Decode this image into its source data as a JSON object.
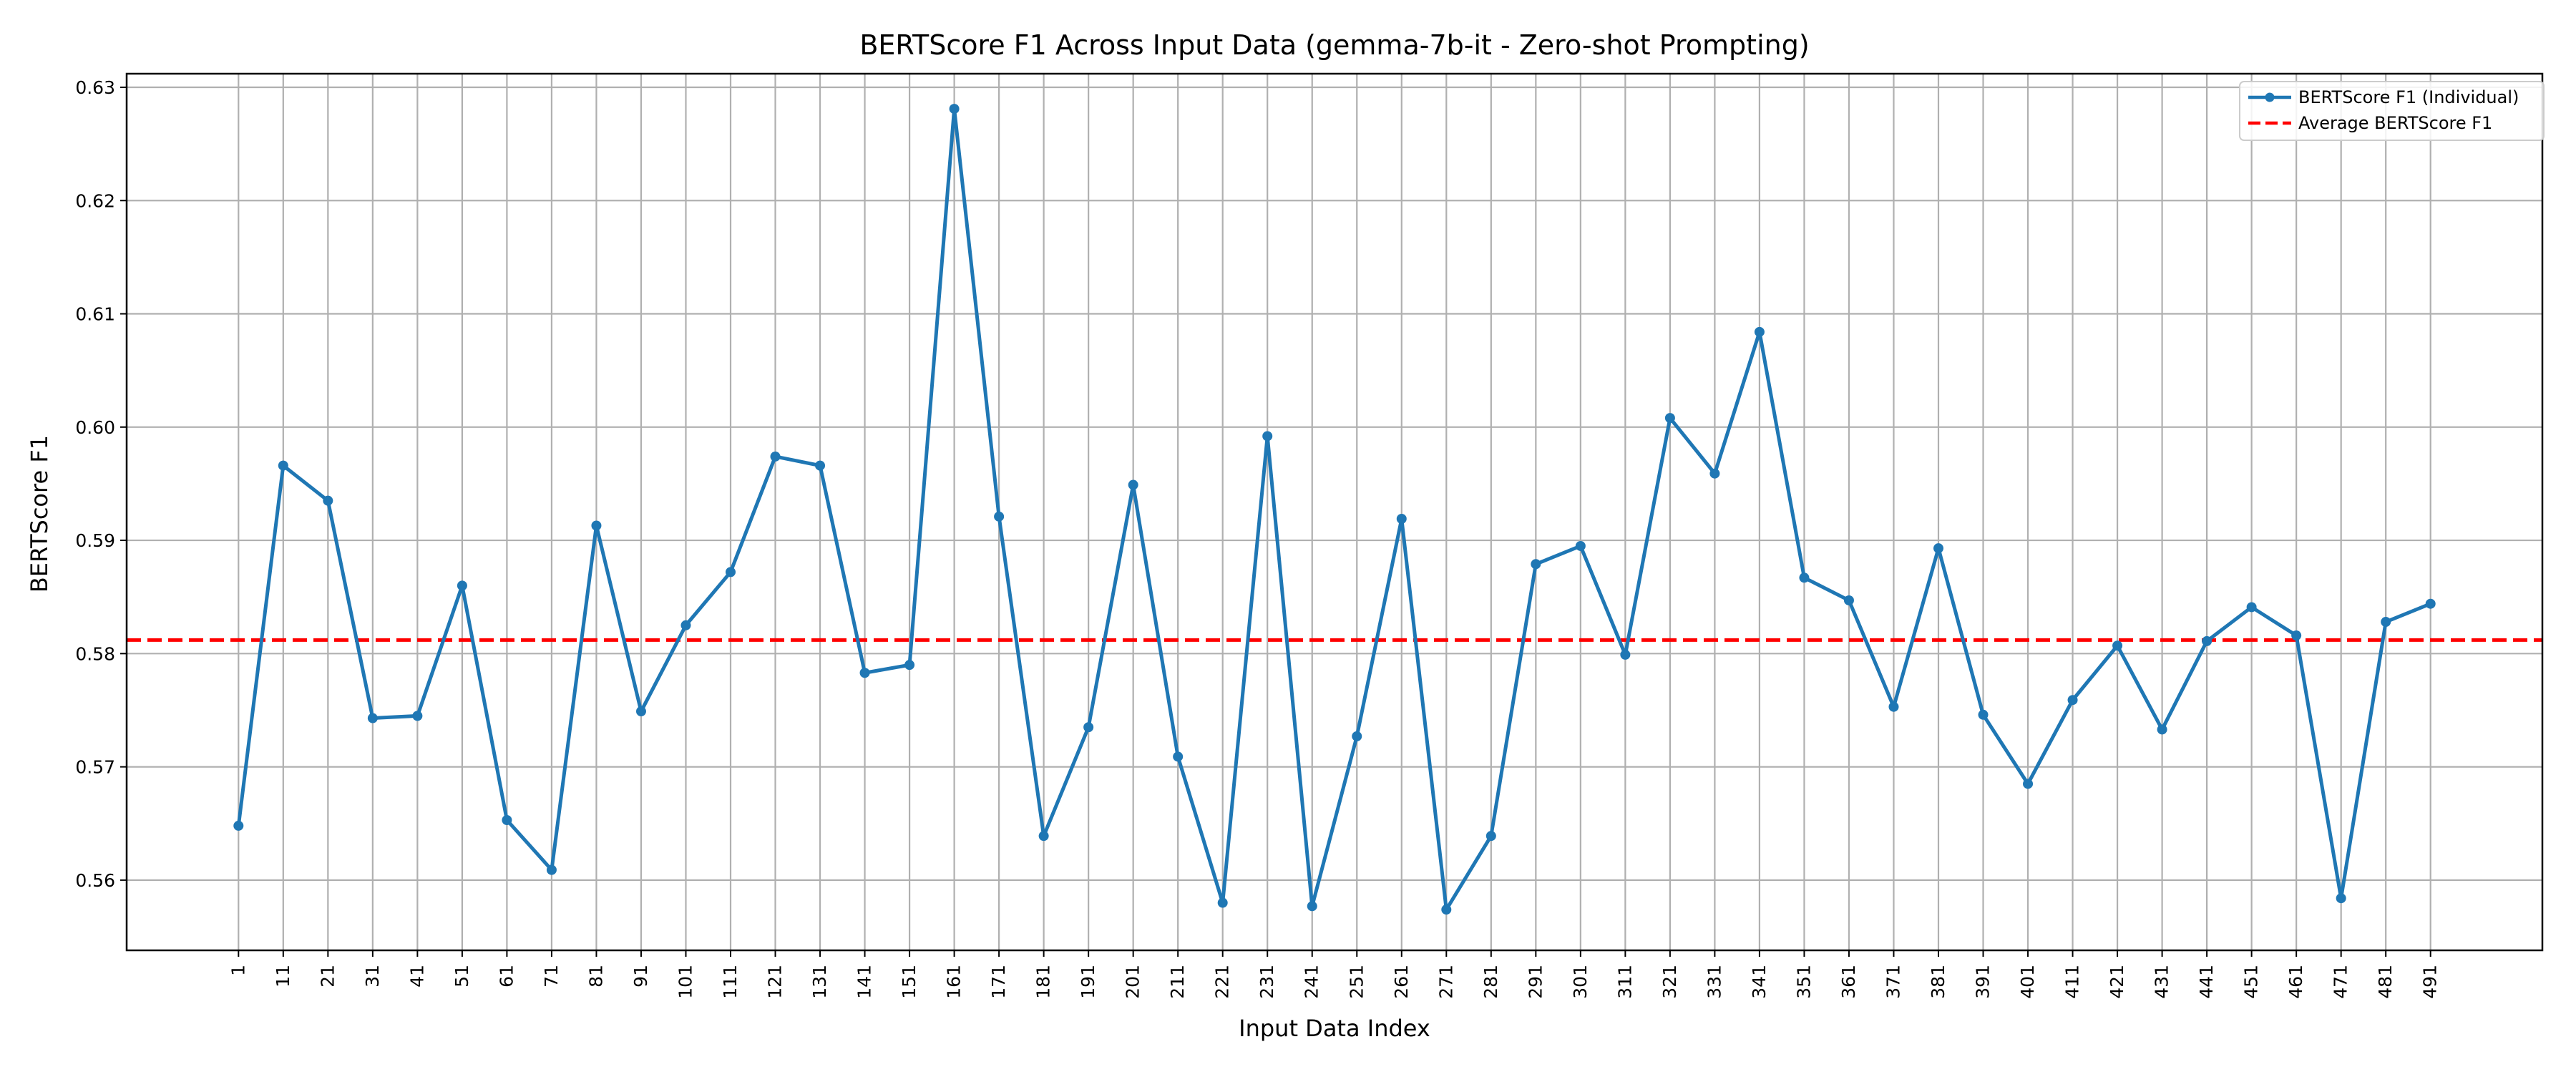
{
  "chart_data": {
    "type": "line",
    "title": "BERTScore F1 Across Input Data (gemma-7b-it - Zero-shot Prompting)",
    "xlabel": "Input Data Index",
    "ylabel": "BERTScore F1",
    "x": [
      1,
      11,
      21,
      31,
      41,
      51,
      61,
      71,
      81,
      91,
      101,
      111,
      121,
      131,
      141,
      151,
      161,
      171,
      181,
      191,
      201,
      211,
      221,
      231,
      241,
      251,
      261,
      271,
      281,
      291,
      301,
      311,
      321,
      331,
      341,
      351,
      361,
      371,
      381,
      391,
      401,
      411,
      421,
      431,
      441,
      451,
      461,
      471,
      481,
      491
    ],
    "x_tick_labels": [
      "1",
      "11",
      "21",
      "31",
      "41",
      "51",
      "61",
      "71",
      "81",
      "91",
      "101",
      "111",
      "121",
      "131",
      "141",
      "151",
      "161",
      "171",
      "181",
      "191",
      "201",
      "211",
      "221",
      "231",
      "241",
      "251",
      "261",
      "271",
      "281",
      "291",
      "301",
      "311",
      "321",
      "331",
      "341",
      "351",
      "361",
      "371",
      "381",
      "391",
      "401",
      "411",
      "421",
      "431",
      "441",
      "451",
      "461",
      "471",
      "481",
      "491"
    ],
    "y_ticks": [
      0.56,
      0.57,
      0.58,
      0.59,
      0.6,
      0.61,
      0.62,
      0.63
    ],
    "y_tick_labels": [
      "0.56",
      "0.57",
      "0.58",
      "0.59",
      "0.60",
      "0.61",
      "0.62",
      "0.63"
    ],
    "ylim": [
      0.5538,
      0.6312
    ],
    "xlim": [
      -24,
      516
    ],
    "grid": true,
    "legend_position": "top-right",
    "series": [
      {
        "name": "BERTScore F1 (Individual)",
        "color": "#1f77b4",
        "style": "solid-line-with-markers",
        "values": [
          0.5648,
          0.5966,
          0.5935,
          0.5743,
          0.5745,
          0.586,
          0.5653,
          0.5609,
          0.5913,
          0.5749,
          0.5825,
          0.5872,
          0.5974,
          0.5966,
          0.5783,
          0.579,
          0.6281,
          0.5921,
          0.5639,
          0.5735,
          0.5949,
          0.5709,
          0.558,
          0.5992,
          0.5577,
          0.5727,
          0.5919,
          0.5574,
          0.5639,
          0.5879,
          0.5895,
          0.5799,
          0.6008,
          0.5959,
          0.6084,
          0.5867,
          0.5847,
          0.5753,
          0.5893,
          0.5746,
          0.5685,
          0.5759,
          0.5807,
          0.5733,
          0.5811,
          0.5841,
          0.5816,
          0.5584,
          0.5828,
          0.5844
        ]
      },
      {
        "name": "Average BERTScore F1",
        "color": "#ff0000",
        "style": "dashed-line",
        "value": 0.5812
      }
    ]
  }
}
